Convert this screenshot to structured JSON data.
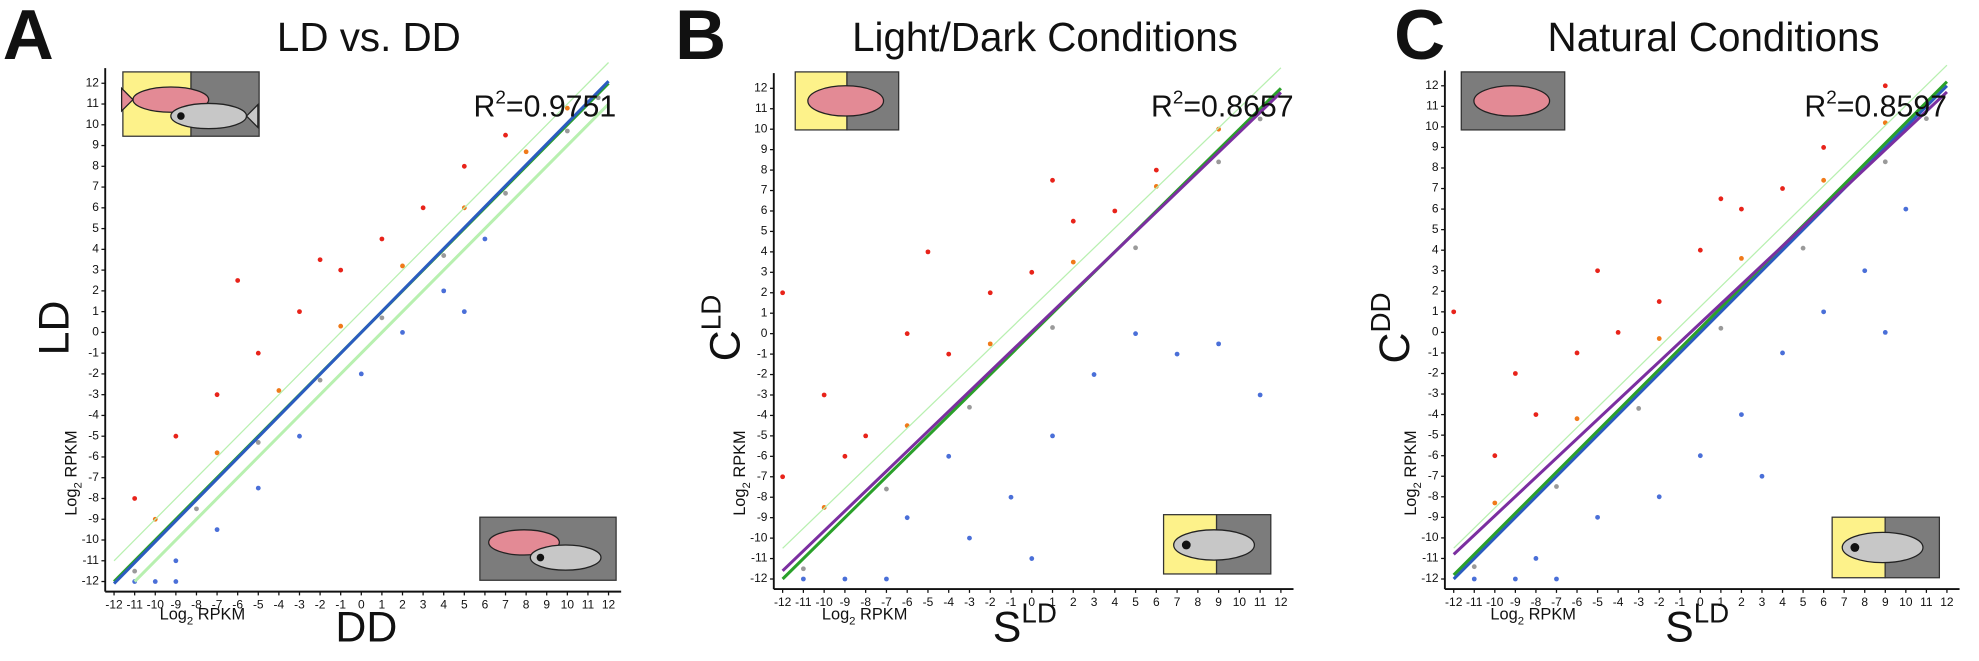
{
  "chart_data": [
    {
      "type": "scatter",
      "panel": "A",
      "title": "LD vs. DD",
      "xlabel": {
        "base": "DD"
      },
      "ylabel": {
        "base": "LD"
      },
      "x_unit_label": {
        "base": "Log",
        "sub": "2",
        "rest": " RPKM"
      },
      "y_unit_label": {
        "base": "Log",
        "sub": "2",
        "rest": " RPKM"
      },
      "r2_label": {
        "base": "R",
        "sup": "2",
        "rest": "=0.9751"
      },
      "xlim": [
        -12,
        12
      ],
      "ylim": [
        -12,
        12
      ],
      "xticks": [
        -12,
        -11,
        -10,
        -9,
        -8,
        -7,
        -6,
        -5,
        -4,
        -3,
        -2,
        -1,
        0,
        1,
        2,
        3,
        4,
        5,
        6,
        7,
        8,
        9,
        10,
        11,
        12
      ],
      "yticks": [
        -12,
        -11,
        -10,
        -9,
        -8,
        -7,
        -6,
        -5,
        -4,
        -3,
        -2,
        -1,
        0,
        1,
        2,
        3,
        4,
        5,
        6,
        7,
        8,
        9,
        10,
        11,
        12
      ],
      "series": [
        {
          "color": "#e8231a",
          "x": [
            -11,
            -9,
            -7,
            -5,
            -3,
            -1,
            1,
            3,
            5,
            7,
            -6,
            -2
          ],
          "y": [
            -8,
            -5,
            -3,
            -1,
            1,
            3,
            4.5,
            6,
            8,
            9.5,
            2.5,
            3.5
          ]
        },
        {
          "color": "#f07a1a",
          "x": [
            -10,
            -7,
            -4,
            -1,
            2,
            5,
            8,
            10
          ],
          "y": [
            -9,
            -5.8,
            -2.8,
            0.3,
            3.2,
            6,
            8.7,
            10.8
          ]
        },
        {
          "color": "#9a9a9a",
          "x": [
            -11,
            -8,
            -5,
            -2,
            1,
            4,
            7,
            10,
            11.5
          ],
          "y": [
            -11.5,
            -8.5,
            -5.3,
            -2.3,
            0.7,
            3.7,
            6.7,
            9.7,
            11.3
          ]
        },
        {
          "color": "#4a6fd8",
          "x": [
            -9,
            -7,
            -5,
            -3,
            0,
            2,
            4,
            6,
            5,
            -11,
            -10,
            -9
          ],
          "y": [
            -11,
            -9.5,
            -7.5,
            -5,
            -2,
            0,
            2,
            4.5,
            1,
            -12,
            -12,
            -12
          ]
        }
      ],
      "lines": [
        {
          "color": "#b8f0b0",
          "x": [
            -12,
            12
          ],
          "y": [
            -11,
            13
          ]
        },
        {
          "color": "#b8f0b0",
          "x": [
            -11,
            12
          ],
          "y": [
            -12,
            11
          ]
        },
        {
          "color": "#2aa02a",
          "x": [
            -12,
            12
          ],
          "y": [
            -12,
            12
          ]
        },
        {
          "color": "#2b5cc0",
          "x": [
            -12,
            12
          ],
          "y": [
            -12.1,
            12.1
          ]
        }
      ]
    },
    {
      "type": "scatter",
      "panel": "B",
      "title": "Light/Dark Conditions",
      "xlabel": {
        "base": "S",
        "sup": "LD"
      },
      "ylabel": {
        "base": "C",
        "sup": "LD"
      },
      "x_unit_label": {
        "base": "Log",
        "sub": "2",
        "rest": " RPKM"
      },
      "y_unit_label": {
        "base": "Log",
        "sub": "2",
        "rest": " RPKM"
      },
      "r2_label": {
        "base": "R",
        "sup": "2",
        "rest": "=0.8657"
      },
      "xlim": [
        -12,
        12
      ],
      "ylim": [
        -12,
        12
      ],
      "xticks": [
        -12,
        -11,
        -10,
        -9,
        -8,
        -7,
        -6,
        -5,
        -4,
        -3,
        -2,
        -1,
        0,
        1,
        2,
        3,
        4,
        5,
        6,
        7,
        8,
        9,
        10,
        11,
        12
      ],
      "yticks": [
        -12,
        -11,
        -10,
        -9,
        -8,
        -7,
        -6,
        -5,
        -4,
        -3,
        -2,
        -1,
        0,
        1,
        2,
        3,
        4,
        5,
        6,
        7,
        8,
        9,
        10,
        11,
        12
      ],
      "series": [
        {
          "color": "#e8231a",
          "x": [
            -12,
            -12,
            -10,
            -8,
            -6,
            -4,
            -2,
            0,
            2,
            4,
            -9,
            -5,
            1,
            6
          ],
          "y": [
            2,
            -7,
            -3,
            -5,
            0,
            -1,
            2,
            3,
            5.5,
            6,
            -6,
            4,
            7.5,
            8
          ]
        },
        {
          "color": "#f07a1a",
          "x": [
            -10,
            -6,
            -2,
            2,
            6,
            9
          ],
          "y": [
            -8.5,
            -4.5,
            -0.5,
            3.5,
            7.2,
            10
          ]
        },
        {
          "color": "#9a9a9a",
          "x": [
            -11,
            -7,
            -3,
            1,
            5,
            9,
            11
          ],
          "y": [
            -11.5,
            -7.6,
            -3.6,
            0.3,
            4.2,
            8.4,
            10.5
          ]
        },
        {
          "color": "#4a6fd8",
          "x": [
            -6,
            -3,
            -1,
            1,
            3,
            5,
            7,
            9,
            11,
            0,
            -4,
            -11,
            -9,
            -7
          ],
          "y": [
            -9,
            -10,
            -8,
            -5,
            -2,
            0,
            -1,
            -0.5,
            -3,
            -11,
            -6,
            -12,
            -12,
            -12
          ]
        }
      ],
      "lines": [
        {
          "color": "#b8f0b0",
          "x": [
            -12,
            12
          ],
          "y": [
            -10.5,
            13
          ]
        },
        {
          "color": "#2aa02a",
          "x": [
            -12,
            12
          ],
          "y": [
            -12,
            12
          ]
        },
        {
          "color": "#7b2fa0",
          "x": [
            -12,
            12
          ],
          "y": [
            -11.6,
            11.8
          ]
        }
      ]
    },
    {
      "type": "scatter",
      "panel": "C",
      "title": "Natural Conditions",
      "xlabel": {
        "base": "S",
        "sup": "LD"
      },
      "ylabel": {
        "base": "C",
        "sup": "DD"
      },
      "x_unit_label": {
        "base": "Log",
        "sub": "2",
        "rest": " RPKM"
      },
      "y_unit_label": {
        "base": "Log",
        "sub": "2",
        "rest": " RPKM"
      },
      "r2_label": {
        "base": "R",
        "sup": "2",
        "rest": "=0.8597"
      },
      "xlim": [
        -12,
        12
      ],
      "ylim": [
        -12,
        12
      ],
      "xticks": [
        -12,
        -11,
        -10,
        -9,
        -8,
        -7,
        -6,
        -5,
        -4,
        -3,
        -2,
        -1,
        0,
        1,
        2,
        3,
        4,
        5,
        6,
        7,
        8,
        9,
        10,
        11,
        12
      ],
      "yticks": [
        -12,
        -11,
        -10,
        -9,
        -8,
        -7,
        -6,
        -5,
        -4,
        -3,
        -2,
        -1,
        0,
        1,
        2,
        3,
        4,
        5,
        6,
        7,
        8,
        9,
        10,
        11,
        12
      ],
      "series": [
        {
          "color": "#e8231a",
          "x": [
            -12,
            -10,
            -8,
            -6,
            -4,
            -2,
            0,
            2,
            4,
            -9,
            -5,
            1,
            6,
            9
          ],
          "y": [
            1,
            -6,
            -4,
            -1,
            0,
            1.5,
            4,
            6,
            7,
            -2,
            3,
            6.5,
            9,
            12
          ]
        },
        {
          "color": "#f07a1a",
          "x": [
            -10,
            -6,
            -2,
            2,
            6,
            9
          ],
          "y": [
            -8.3,
            -4.2,
            -0.3,
            3.6,
            7.4,
            10.2
          ]
        },
        {
          "color": "#9a9a9a",
          "x": [
            -11,
            -7,
            -3,
            1,
            5,
            9,
            11
          ],
          "y": [
            -11.4,
            -7.5,
            -3.7,
            0.2,
            4.1,
            8.3,
            10.4
          ]
        },
        {
          "color": "#4a6fd8",
          "x": [
            -5,
            -2,
            0,
            2,
            4,
            6,
            8,
            10,
            9,
            3,
            -8,
            -11,
            -9,
            -7
          ],
          "y": [
            -9,
            -8,
            -6,
            -4,
            -1,
            1,
            3,
            6,
            0,
            -7,
            -11,
            -12,
            -12,
            -12
          ]
        }
      ],
      "lines": [
        {
          "color": "#b8f0b0",
          "x": [
            -12,
            12
          ],
          "y": [
            -10.5,
            13
          ]
        },
        {
          "color": "#2b5cc0",
          "x": [
            -12,
            12
          ],
          "y": [
            -12,
            12
          ]
        },
        {
          "color": "#2aa02a",
          "x": [
            -12,
            12
          ],
          "y": [
            -11.8,
            12.2
          ]
        },
        {
          "color": "#7b2fa0",
          "x": [
            -12,
            12
          ],
          "y": [
            -10.8,
            11.7
          ]
        }
      ]
    }
  ]
}
